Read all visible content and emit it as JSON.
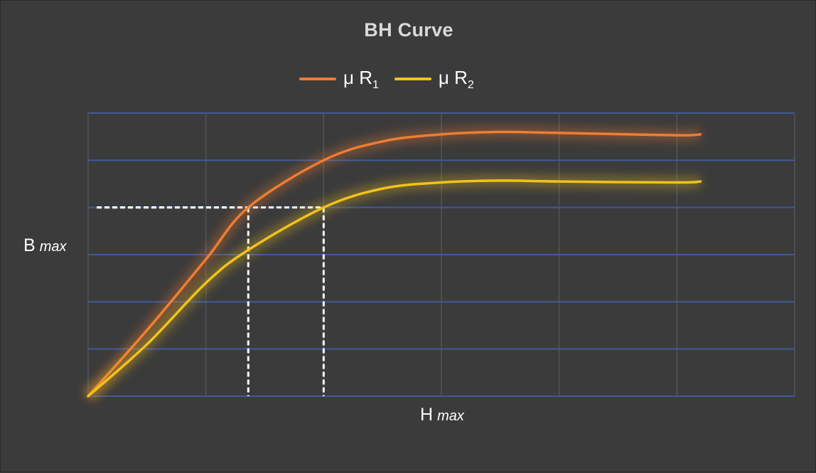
{
  "title": "BH Curve",
  "legend": [
    {
      "base": "μ R",
      "sub": "1",
      "color": "#ef7d32"
    },
    {
      "base": "μ R",
      "sub": "2",
      "color": "#f2c21a"
    }
  ],
  "ylabel": {
    "main": "B",
    "sub": "max"
  },
  "xlabel": {
    "main": "H",
    "sub": "max"
  },
  "colors": {
    "background": "#3b3b3b",
    "grid": "#3f5a99",
    "guide": "#ffffff"
  },
  "chart_data": {
    "type": "line",
    "title": "BH Curve",
    "xlabel": "H max",
    "ylabel": "B max",
    "xlim": [
      0,
      6
    ],
    "ylim": [
      0,
      6
    ],
    "grid": true,
    "legend_position": "top",
    "series": [
      {
        "name": "μ R1",
        "color": "#ef7d32",
        "x": [
          0,
          0.5,
          1.0,
          1.36,
          2.0,
          2.5,
          3.0,
          3.5,
          4.0,
          5.0,
          5.2
        ],
        "y": [
          0,
          1.4,
          2.9,
          4.0,
          5.0,
          5.4,
          5.55,
          5.6,
          5.58,
          5.53,
          5.55
        ]
      },
      {
        "name": "μ R2",
        "color": "#f2c21a",
        "x": [
          0,
          0.5,
          1.0,
          1.36,
          2.0,
          2.5,
          3.0,
          3.5,
          4.0,
          5.0,
          5.2
        ],
        "y": [
          0,
          1.1,
          2.4,
          3.1,
          4.0,
          4.4,
          4.53,
          4.57,
          4.55,
          4.53,
          4.55
        ]
      }
    ],
    "guides": [
      {
        "x": 1.36,
        "y": 4.0
      },
      {
        "x": 2.0,
        "y": 4.0
      }
    ]
  }
}
